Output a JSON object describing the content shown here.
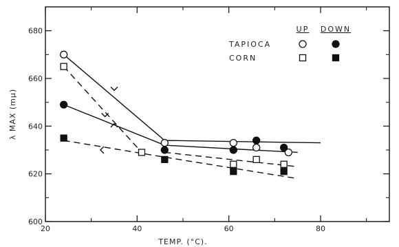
{
  "chart_data": {
    "type": "scatter",
    "xlabel": "TEMP. (°C).",
    "ylabel": "λ MAX (mμ)",
    "xlim": [
      20,
      95
    ],
    "ylim": [
      600,
      690
    ],
    "x_ticks": [
      20,
      40,
      60,
      80
    ],
    "y_ticks": [
      600,
      620,
      640,
      660,
      680
    ],
    "grid": false,
    "legend": {
      "placement": "top-right",
      "column_headers": [
        "UP",
        "DOWN"
      ],
      "rows": [
        "TAPIOCA",
        "CORN"
      ]
    },
    "colors": {
      "ink": "#111111",
      "background": "#ffffff"
    },
    "series": [
      {
        "name": "TAPIOCA UP",
        "marker": "open-circle",
        "x": [
          24,
          46,
          61,
          66,
          73
        ],
        "y": [
          670,
          633,
          633,
          631,
          629
        ]
      },
      {
        "name": "TAPIOCA DOWN",
        "marker": "filled-circle",
        "x": [
          24,
          46,
          61,
          66,
          72
        ],
        "y": [
          649,
          630,
          630,
          634,
          631
        ]
      },
      {
        "name": "CORN UP",
        "marker": "open-square",
        "x": [
          24,
          41,
          61,
          66,
          72
        ],
        "y": [
          665,
          629,
          624,
          626,
          624
        ]
      },
      {
        "name": "CORN DOWN",
        "marker": "filled-square",
        "x": [
          24,
          46,
          61,
          72
        ],
        "y": [
          635,
          626,
          621,
          621
        ]
      }
    ],
    "lines": [
      {
        "style": "solid",
        "points": [
          [
            24,
            670
          ],
          [
            46,
            634
          ],
          [
            80,
            633
          ]
        ]
      },
      {
        "style": "solid",
        "points": [
          [
            24,
            649
          ],
          [
            46,
            632
          ],
          [
            75,
            629
          ]
        ]
      },
      {
        "style": "dashed",
        "points": [
          [
            24,
            665
          ],
          [
            41,
            629
          ]
        ]
      },
      {
        "style": "dashed",
        "points": [
          [
            46,
            629
          ],
          [
            75,
            623
          ]
        ]
      },
      {
        "style": "dashed",
        "points": [
          [
            24,
            634
          ],
          [
            46,
            627
          ],
          [
            75,
            618
          ]
        ]
      }
    ],
    "arrows": [
      {
        "at": [
          35,
          655
        ],
        "dir": "down"
      },
      {
        "at": [
          35,
          641
        ],
        "dir": "up"
      },
      {
        "at": [
          33,
          644
        ],
        "dir": "down"
      },
      {
        "at": [
          32,
          630
        ],
        "dir": "left"
      }
    ]
  }
}
